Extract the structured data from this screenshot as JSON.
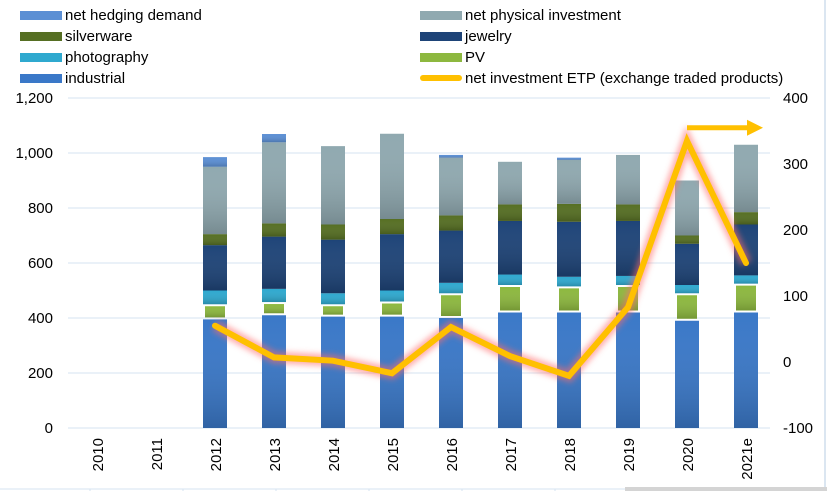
{
  "chart_data": {
    "type": "bar",
    "subtype": "stacked-bar-with-line-secondary-axis",
    "title": "",
    "xlabel": "",
    "ylabel": "",
    "categories": [
      "2010",
      "2011",
      "2012",
      "2013",
      "2014",
      "2015",
      "2016",
      "2017",
      "2018",
      "2019",
      "2020",
      "2021e"
    ],
    "y_left": {
      "range": [
        0,
        1200
      ],
      "ticks": [
        "0",
        "200",
        "400",
        "600",
        "800",
        "1,000",
        "1,200"
      ],
      "tick_values": [
        0,
        200,
        400,
        600,
        800,
        1000,
        1200
      ]
    },
    "y_right": {
      "range": [
        -100,
        400
      ],
      "ticks": [
        "-100",
        "0",
        "100",
        "200",
        "300",
        "400"
      ],
      "tick_values": [
        -100,
        0,
        100,
        200,
        300,
        400
      ]
    },
    "grid": true,
    "legend_position": "top",
    "series": [
      {
        "name": "industrial",
        "kind": "bar",
        "axis": "left",
        "color": "#3a78c8",
        "values": [
          null,
          null,
          395,
          410,
          405,
          405,
          400,
          420,
          420,
          420,
          390,
          420
        ]
      },
      {
        "name": "PV",
        "kind": "bar",
        "axis": "left",
        "color": "#8db83f",
        "values": [
          null,
          null,
          55,
          48,
          45,
          55,
          90,
          100,
          95,
          100,
          100,
          105
        ]
      },
      {
        "name": "photography",
        "kind": "bar",
        "axis": "left",
        "color": "#2fa9cf",
        "values": [
          null,
          null,
          50,
          48,
          40,
          40,
          38,
          38,
          35,
          33,
          30,
          30
        ]
      },
      {
        "name": "jewelry",
        "kind": "bar",
        "axis": "left",
        "color": "#1e4478",
        "values": [
          null,
          null,
          165,
          190,
          195,
          205,
          190,
          195,
          200,
          200,
          150,
          185
        ]
      },
      {
        "name": "silverware",
        "kind": "bar",
        "axis": "left",
        "color": "#566f23",
        "values": [
          null,
          null,
          40,
          48,
          55,
          55,
          55,
          60,
          65,
          60,
          30,
          45
        ]
      },
      {
        "name": "net physical investment",
        "kind": "bar",
        "axis": "left",
        "color": "#90a9b0",
        "values": [
          null,
          null,
          245,
          295,
          285,
          310,
          210,
          155,
          160,
          180,
          200,
          245
        ]
      },
      {
        "name": "net hedging demand",
        "kind": "bar",
        "axis": "left",
        "color": "#5b8fd4",
        "values": [
          null,
          null,
          35,
          30,
          0,
          0,
          10,
          0,
          8,
          0,
          0,
          0
        ]
      },
      {
        "name": "net investment ETP (exchange traded products)",
        "kind": "line",
        "axis": "right",
        "color": "#ffc000",
        "values": [
          null,
          null,
          55,
          7,
          2,
          -17,
          53,
          9,
          -21,
          83,
          335,
          150
        ]
      }
    ],
    "annotations": [
      {
        "type": "arrow",
        "color": "#ffc000",
        "direction": "right",
        "at_category": "2020",
        "value_right_axis": 355
      }
    ]
  },
  "legend": {
    "items": [
      {
        "label": "net hedging demand",
        "color": "#5b8fd4",
        "kind": "bar"
      },
      {
        "label": "silverware",
        "color": "#566f23",
        "kind": "bar"
      },
      {
        "label": "photography",
        "color": "#2fa9cf",
        "kind": "bar"
      },
      {
        "label": "industrial",
        "color": "#3a78c8",
        "kind": "bar"
      },
      {
        "label": "net physical investment",
        "color": "#90a9b0",
        "kind": "bar"
      },
      {
        "label": "jewelry",
        "color": "#1e4478",
        "kind": "bar"
      },
      {
        "label": "PV",
        "color": "#8db83f",
        "kind": "bar"
      },
      {
        "label": "net investment ETP (exchange traded products)",
        "color": "#ffc000",
        "kind": "line"
      }
    ]
  }
}
